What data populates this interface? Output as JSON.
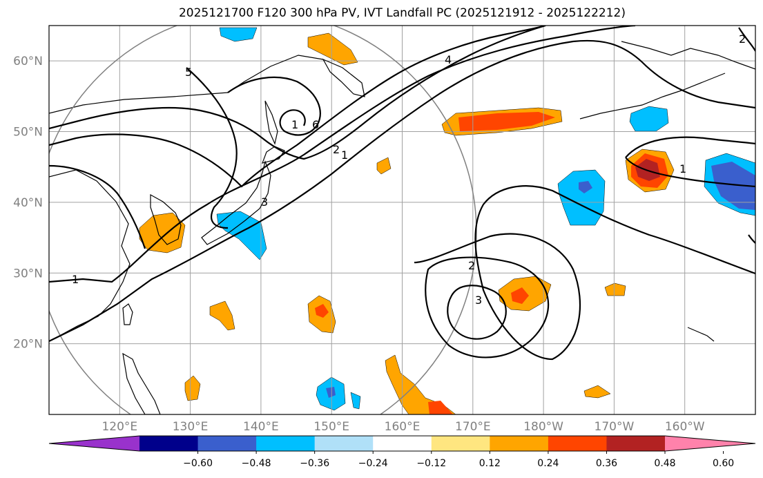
{
  "title": "2025121700 F120 300 hPa PV, IVT Landfall PC (2025121912 - 2025122212)",
  "map": {
    "projection": "PlateCarree",
    "lon_range": [
      110,
      210
    ],
    "lat_range": [
      10,
      65
    ],
    "grid": true,
    "lat_labels": [
      "20°N",
      "30°N",
      "40°N",
      "50°N",
      "60°N"
    ],
    "lon_labels": [
      "120°E",
      "130°E",
      "140°E",
      "150°E",
      "160°E",
      "170°E",
      "180°W",
      "170°W",
      "160°W"
    ],
    "colors": {
      "coast": "#000000",
      "grid": "#a0a0a0",
      "label": "#808080",
      "landfall_circle": "#808080"
    }
  },
  "chart_data": {
    "type": "contour-map",
    "pv_contour_labels": [
      "1",
      "1",
      "1",
      "1",
      "2",
      "2",
      "2",
      "3",
      "3",
      "4",
      "5",
      "6"
    ],
    "colorbar": {
      "ticks": [
        "−0.60",
        "−0.48",
        "−0.36",
        "−0.24",
        "−0.12",
        "0.12",
        "0.24",
        "0.36",
        "0.48",
        "0.60"
      ],
      "extend": "both",
      "colors": [
        "#9932cc",
        "#00008b",
        "#3a5fcd",
        "#00bfff",
        "#b0e0f8",
        "#ffffff",
        "#ffe680",
        "#ffa500",
        "#ff4500",
        "#b22222",
        "#ff82ab"
      ]
    }
  }
}
